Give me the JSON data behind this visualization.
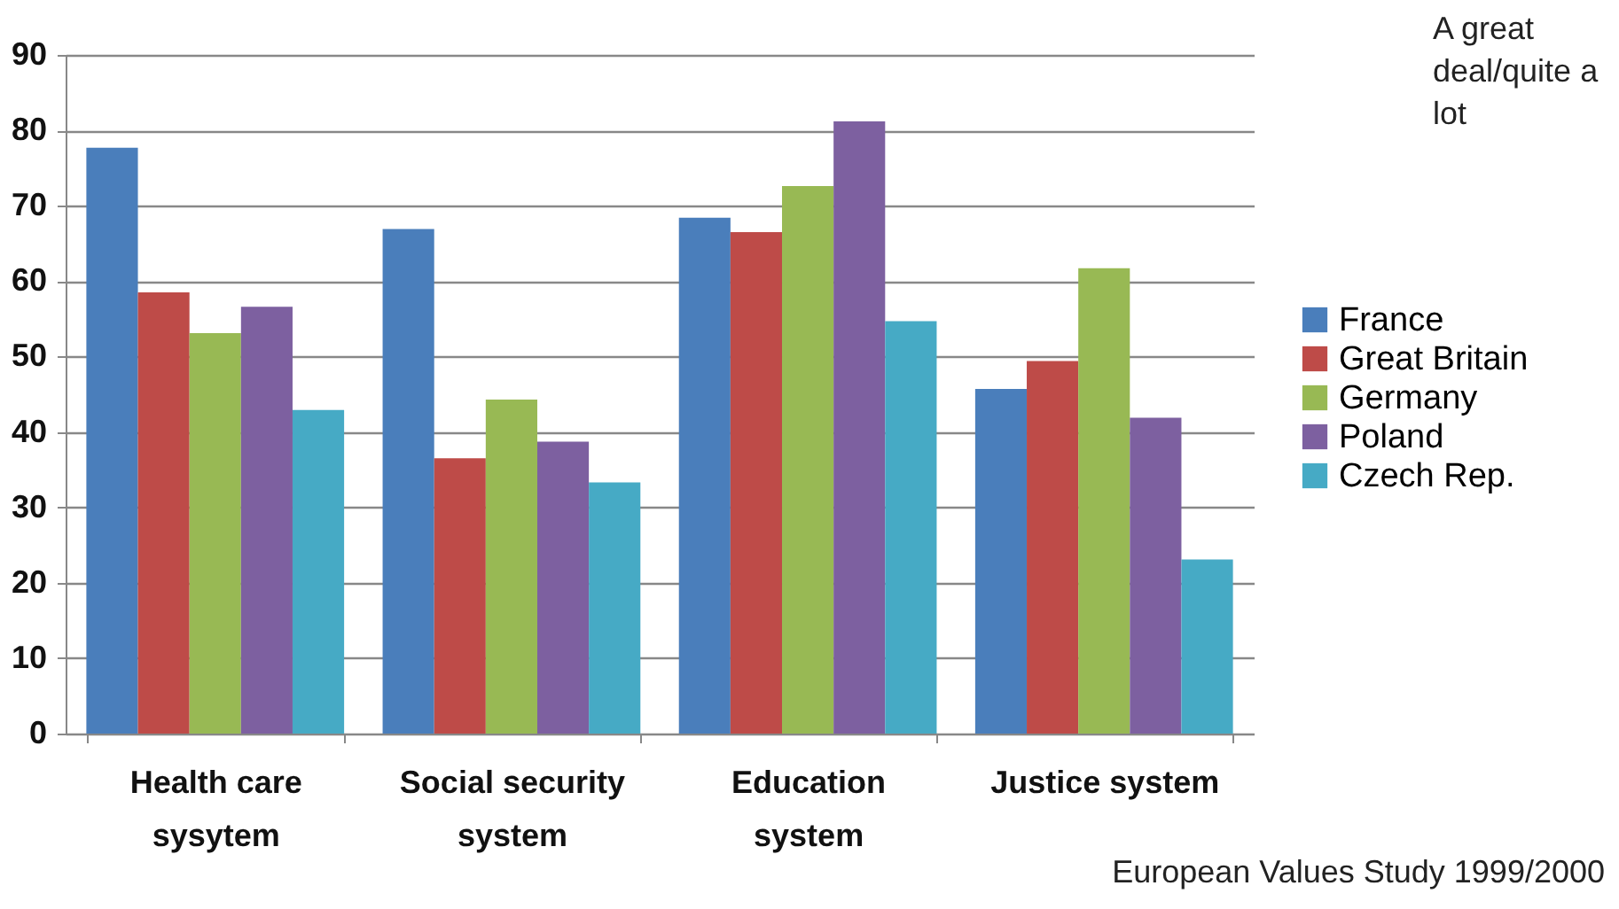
{
  "chart_data": {
    "type": "bar",
    "categories": [
      "Health care sysytem",
      "Social security system",
      "Education system",
      "Justice system"
    ],
    "series": [
      {
        "name": "France",
        "color": "#4a7ebb",
        "values": [
          77.7,
          66.9,
          68.4,
          45.7
        ]
      },
      {
        "name": "Great Britain",
        "color": "#be4b48",
        "values": [
          58.5,
          36.5,
          66.5,
          49.4
        ]
      },
      {
        "name": "Germany",
        "color": "#98b954",
        "values": [
          53.1,
          44.3,
          72.6,
          61.7
        ]
      },
      {
        "name": "Poland",
        "color": "#7d60a0",
        "values": [
          56.6,
          38.7,
          81.2,
          41.9
        ]
      },
      {
        "name": "Czech Rep.",
        "color": "#46aac5",
        "values": [
          42.9,
          33.3,
          54.7,
          23.1
        ]
      }
    ],
    "ylim": [
      0,
      90
    ],
    "yticks": [
      0,
      10,
      20,
      30,
      40,
      50,
      60,
      70,
      80,
      90
    ],
    "grid": "y",
    "legend": "right",
    "annotations": [
      "A great deal/quite a lot",
      "European Values Study 1999/2000"
    ]
  }
}
